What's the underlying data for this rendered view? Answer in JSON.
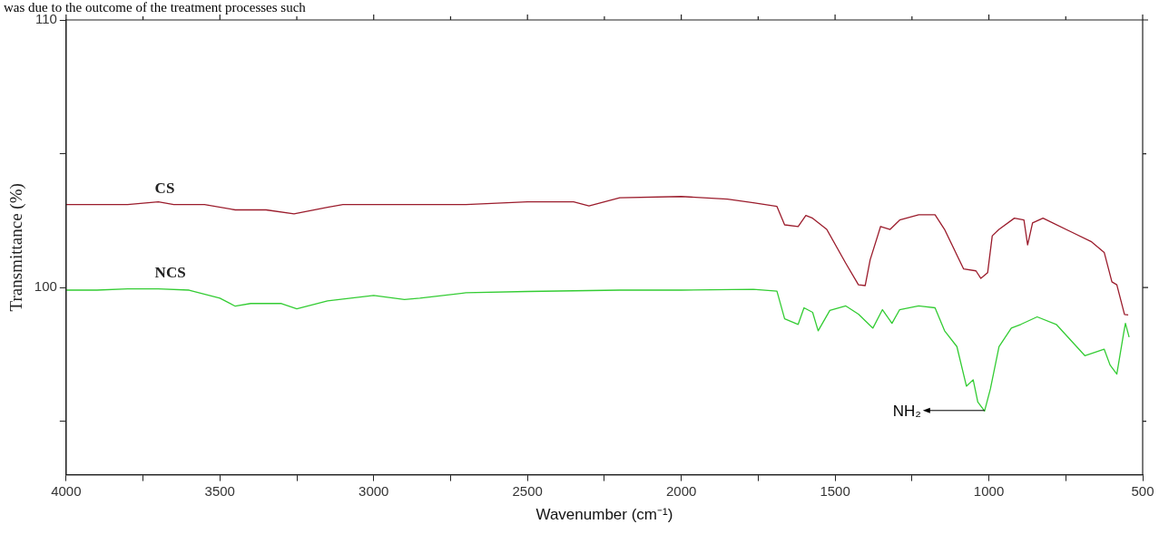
{
  "chart_data": {
    "type": "line",
    "xlabel": "Wavenumber (cm⁻¹)",
    "ylabel": "Transmittance (%)",
    "xlim": [
      4000,
      500
    ],
    "xticks": [
      4000,
      {
        "value": 3750,
        "label": null
      },
      3500,
      {
        "value": 3250,
        "label": null
      },
      3000,
      {
        "value": 2750,
        "label": null
      },
      2500,
      {
        "value": 2250,
        "label": null
      },
      2000,
      {
        "value": 1750,
        "label": null
      },
      1500,
      {
        "value": 1250,
        "label": null
      },
      1000,
      {
        "value": 750,
        "label": null
      },
      500
    ],
    "ylim": [
      93,
      110
    ],
    "yticks": [
      {
        "value": 95,
        "label": null
      },
      100,
      {
        "value": 105,
        "label": null
      },
      110
    ],
    "grid": false,
    "legend": false,
    "marker": "none",
    "line_style": "solid",
    "annotations": [
      "was due to the outcome of the treatment processes such",
      {
        "text": "NH₂",
        "x": 1014,
        "y": 95.4
      }
    ],
    "series": [
      {
        "name": "CS",
        "color": "#9b1c2c",
        "x": [
          4000,
          3900,
          3800,
          3700,
          3650,
          3550,
          3450,
          3350,
          3259,
          3150,
          3100,
          2900,
          2700,
          2500,
          2350,
          2300,
          2200,
          2000,
          1850,
          1766,
          1689,
          1664,
          1620,
          1595,
          1573,
          1527,
          1465,
          1424,
          1402,
          1386,
          1352,
          1321,
          1290,
          1228,
          1175,
          1144,
          1082,
          1042,
          1026,
          1004,
          989,
          967,
          917,
          886,
          874,
          858,
          824,
          731,
          668,
          625,
          600,
          584,
          559,
          547
        ],
        "values": [
          103.1,
          103.1,
          103.1,
          103.2,
          103.1,
          103.1,
          102.9,
          102.9,
          102.75,
          103.0,
          103.1,
          103.1,
          103.1,
          103.2,
          103.2,
          103.05,
          103.35,
          103.4,
          103.3,
          103.17,
          103.03,
          102.34,
          102.28,
          102.69,
          102.59,
          102.17,
          100.9,
          100.1,
          100.07,
          101.03,
          102.28,
          102.17,
          102.52,
          102.72,
          102.72,
          102.17,
          100.69,
          100.62,
          100.34,
          100.55,
          101.93,
          102.17,
          102.59,
          102.52,
          101.59,
          102.41,
          102.59,
          102.07,
          101.72,
          101.31,
          100.21,
          100.1,
          98.99,
          98.97
        ]
      },
      {
        "name": "NCS",
        "color": "#33cc33",
        "x": [
          4000,
          3900,
          3800,
          3700,
          3600,
          3500,
          3450,
          3400,
          3300,
          3250,
          3150,
          3000,
          2900,
          2850,
          2700,
          2500,
          2200,
          2000,
          1766,
          1689,
          1664,
          1620,
          1601,
          1573,
          1555,
          1517,
          1465,
          1424,
          1377,
          1346,
          1315,
          1290,
          1228,
          1175,
          1144,
          1104,
          1073,
          1051,
          1036,
          1014,
          995,
          967,
          927,
          896,
          843,
          781,
          688,
          625,
          606,
          584,
          562,
          556,
          544
        ],
        "values": [
          99.9,
          99.9,
          99.95,
          99.95,
          99.9,
          99.6,
          99.3,
          99.4,
          99.4,
          99.2,
          99.5,
          99.7,
          99.55,
          99.6,
          99.8,
          99.85,
          99.9,
          99.9,
          99.93,
          99.86,
          98.83,
          98.62,
          99.24,
          99.07,
          98.38,
          99.14,
          99.31,
          99.0,
          98.48,
          99.17,
          98.66,
          99.17,
          99.31,
          99.24,
          98.38,
          97.79,
          96.31,
          96.55,
          95.72,
          95.38,
          96.21,
          97.79,
          98.48,
          98.62,
          98.9,
          98.62,
          97.45,
          97.69,
          97.1,
          96.76,
          98.28,
          98.66,
          98.14
        ]
      }
    ]
  }
}
